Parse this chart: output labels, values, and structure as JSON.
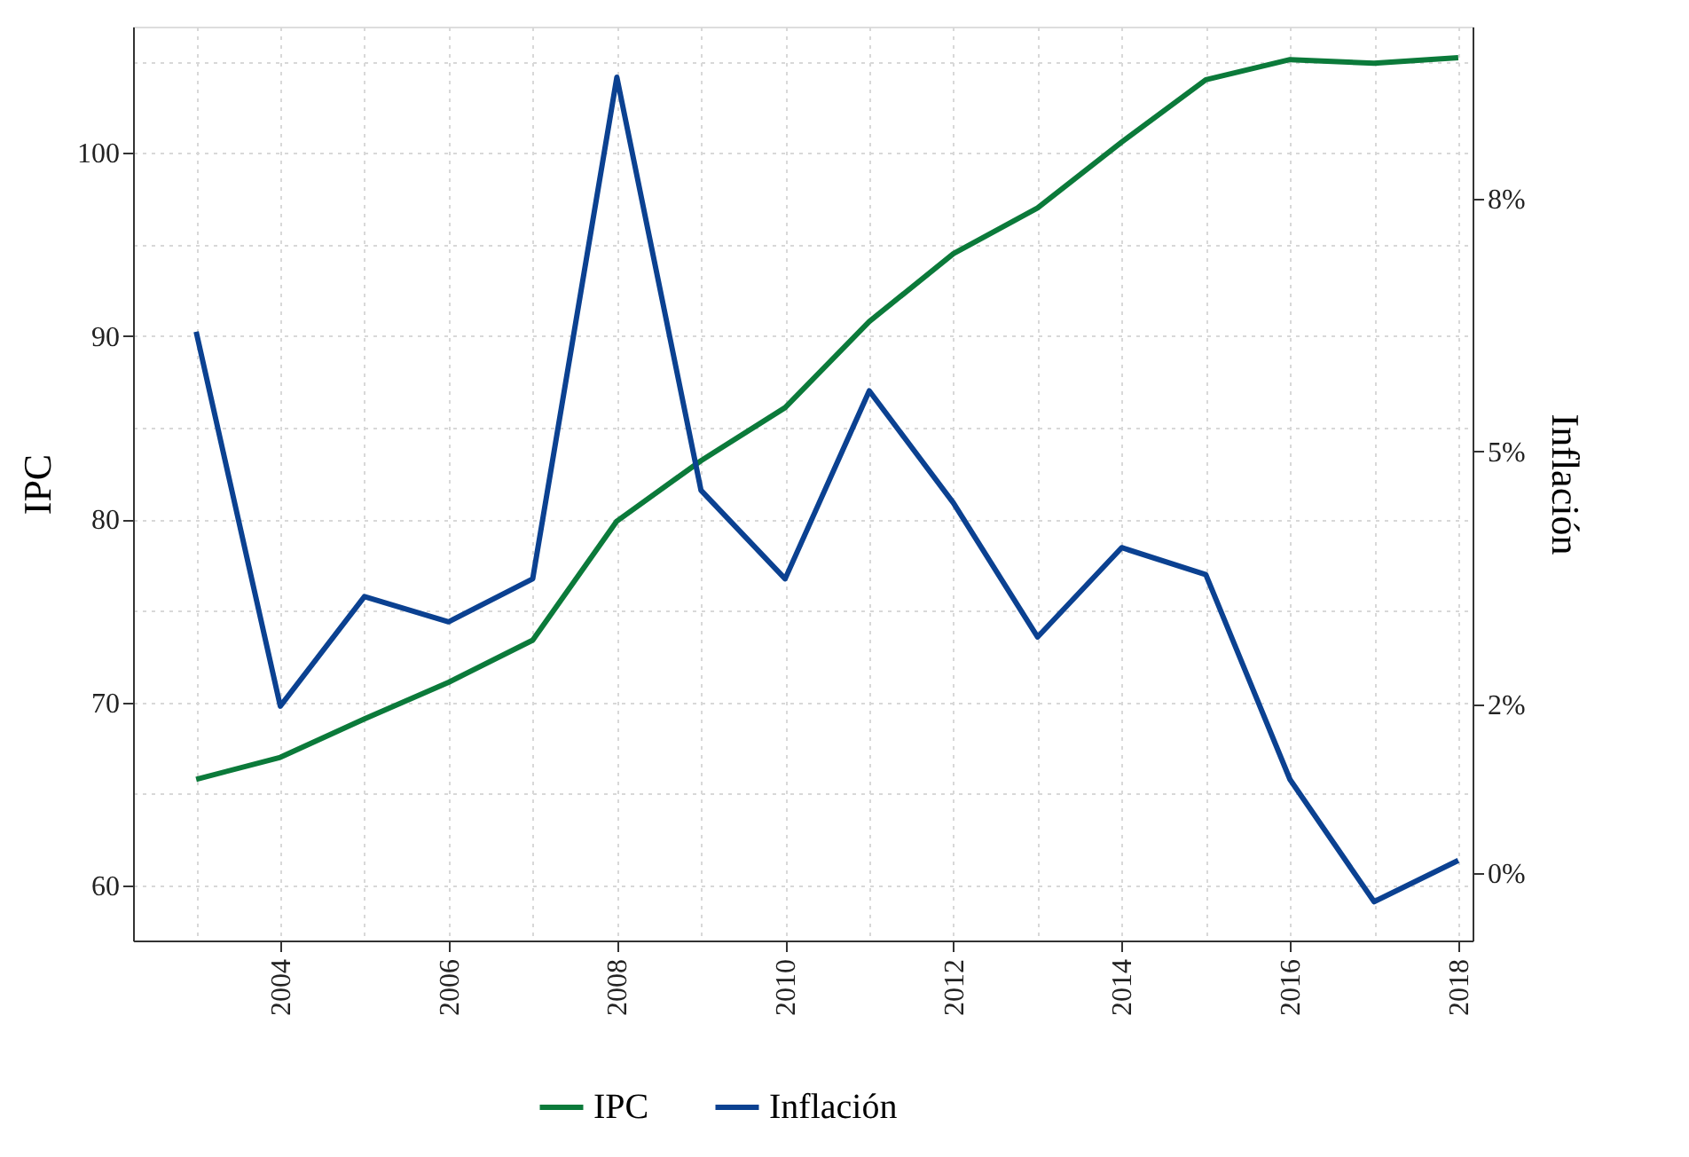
{
  "chart_data": {
    "type": "line",
    "x": [
      2003,
      2004,
      2005,
      2006,
      2007,
      2008,
      2009,
      2010,
      2011,
      2012,
      2013,
      2014,
      2015,
      2016,
      2017,
      2018
    ],
    "series": [
      {
        "name": "IPC",
        "color": "#0b7a3a",
        "values": [
          65.8,
          67.0,
          69.1,
          71.1,
          73.4,
          79.9,
          83.2,
          86.1,
          90.8,
          94.5,
          97.0,
          100.6,
          104.0,
          105.1,
          104.9,
          105.2
        ]
      },
      {
        "name": "Inflación",
        "color": "#0b4191",
        "axis": "y2",
        "values": [
          6.42,
          1.98,
          3.28,
          2.98,
          3.49,
          9.44,
          4.54,
          3.49,
          5.72,
          4.39,
          2.8,
          3.86,
          3.54,
          1.11,
          -0.34,
          0.15
        ]
      }
    ],
    "ylabel": "IPC",
    "y2label": "Inflación",
    "xlim": [
      2002.25,
      2018.17
    ],
    "xticks": [
      {
        "value": 2003,
        "label": null
      },
      2004,
      {
        "value": 2005,
        "label": null
      },
      2006,
      {
        "value": 2007,
        "label": null
      },
      2008,
      {
        "value": 2009,
        "label": null
      },
      2010,
      {
        "value": 2011,
        "label": null
      },
      2012,
      {
        "value": 2013,
        "label": null
      },
      2014,
      {
        "value": 2015,
        "label": null
      },
      2016,
      {
        "value": 2017,
        "label": null
      },
      2018
    ],
    "ylim": [
      57.0,
      106.9
    ],
    "yticks": [
      60,
      {
        "value": 65,
        "label": null
      },
      70,
      {
        "value": 75,
        "label": null
      },
      80,
      {
        "value": 85,
        "label": null
      },
      90,
      {
        "value": 95,
        "label": null
      },
      100,
      {
        "value": 105,
        "label": null
      }
    ],
    "y2lim": [
      -0.8,
      10.04
    ],
    "y2ticks": [
      {
        "value": 0,
        "label": "0%"
      },
      {
        "value": 2,
        "label": "2%"
      },
      {
        "value": 5,
        "label": "5%"
      },
      {
        "value": 8,
        "label": "8%"
      }
    ],
    "grid": true,
    "legend": "bottom",
    "line_style": "solid",
    "marker": "none"
  }
}
